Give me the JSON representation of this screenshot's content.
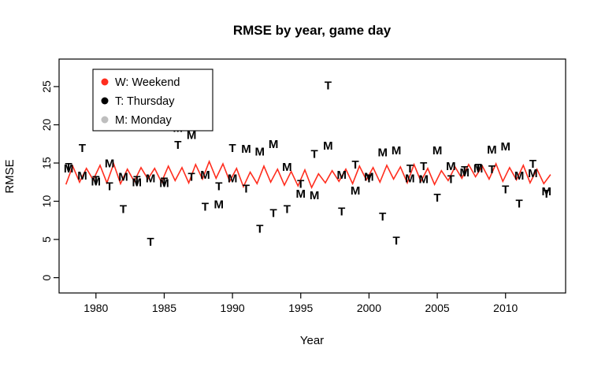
{
  "chart_data": {
    "type": "scatter",
    "title": "RMSE by year, game day",
    "xlabel": "Year",
    "ylabel": "RMSE",
    "xlim": [
      1977.3,
      2014.4
    ],
    "ylim": [
      -2.0,
      28.6
    ],
    "x_ticks": [
      1980,
      1985,
      1990,
      1995,
      2000,
      2005,
      2010
    ],
    "y_ticks": [
      0,
      5,
      10,
      15,
      20,
      25
    ],
    "grid": false,
    "legend_position": "top-left",
    "legend": [
      {
        "label": "W: Weekend",
        "color": "#FF2D1E",
        "marker": "dot"
      },
      {
        "label": "T: Thursday",
        "color": "#000000",
        "marker": "dot"
      },
      {
        "label": "M: Monday",
        "color": "#BEBEBE",
        "marker": "dot"
      }
    ],
    "series": [
      {
        "name": "Weekend",
        "type": "line",
        "color": "#FF2D1E",
        "x_start": 1977.8,
        "x_step": 0.5,
        "y": [
          12.2,
          14.6,
          12.5,
          14.3,
          12.8,
          14.7,
          12.4,
          14.9,
          12.3,
          14.2,
          12.6,
          14.4,
          12.9,
          14.3,
          12.5,
          14.6,
          12.7,
          14.4,
          12.4,
          14.8,
          12.9,
          15.2,
          13.0,
          14.9,
          12.6,
          14.3,
          11.9,
          13.8,
          12.3,
          14.6,
          12.5,
          14.2,
          12.1,
          13.9,
          12.0,
          14.1,
          11.8,
          13.6,
          12.4,
          14.0,
          12.6,
          14.2,
          12.3,
          14.6,
          12.8,
          14.4,
          12.5,
          14.7,
          12.9,
          14.5,
          12.4,
          14.8,
          12.6,
          14.3,
          12.2,
          14.0,
          12.7,
          14.5,
          13.0,
          14.8,
          13.2,
          14.6,
          12.9,
          14.9,
          12.6,
          14.4,
          12.8,
          14.7,
          12.4,
          14.2,
          12.3,
          13.5
        ]
      },
      {
        "name": "Thursday",
        "type": "text",
        "marker": "T",
        "color": "#000000",
        "x_start": 1978,
        "x_step": 1,
        "y": [
          14.5,
          17.0,
          12.8,
          12.0,
          9.0,
          12.8,
          4.7,
          12.6,
          17.4,
          13.2,
          9.3,
          12.0,
          17.0,
          11.7,
          6.4,
          8.5,
          9.0,
          12.3,
          16.2,
          25.2,
          8.7,
          14.8,
          13.0,
          8.0,
          4.9,
          14.3,
          14.6,
          10.5,
          12.9,
          14.1,
          14.4,
          14.2,
          11.6,
          9.7,
          14.9,
          11.0
        ]
      },
      {
        "name": "Monday",
        "type": "text",
        "marker": "M",
        "color": "#BEBEBE",
        "x_start": 1978,
        "x_step": 1,
        "y": [
          14.3,
          13.4,
          12.6,
          15.0,
          13.2,
          12.5,
          13.0,
          12.4,
          19.6,
          18.7,
          13.5,
          9.6,
          13.0,
          16.9,
          16.5,
          17.5,
          14.5,
          11.0,
          10.8,
          17.3,
          13.5,
          11.4,
          13.2,
          16.4,
          16.7,
          13.0,
          12.9,
          16.7,
          14.6,
          13.8,
          14.3,
          16.8,
          17.2,
          13.4,
          13.7,
          11.3
        ]
      }
    ]
  }
}
